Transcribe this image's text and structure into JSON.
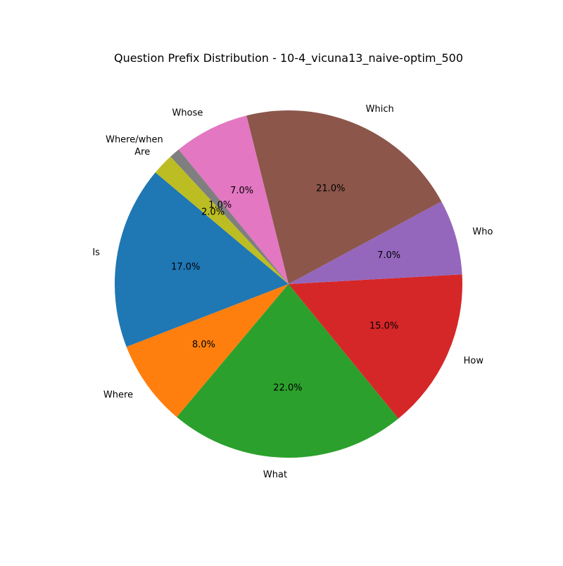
{
  "chart_data": {
    "type": "pie",
    "title": "Question Prefix Distribution - 10-4_vicuna13_naive-optim_500",
    "categories": [
      "Is",
      "Where",
      "What",
      "How",
      "Who",
      "Which",
      "Whose",
      "Where/when",
      "Are"
    ],
    "values": [
      17.0,
      8.0,
      22.0,
      15.0,
      7.0,
      21.0,
      7.0,
      1.0,
      2.0
    ],
    "percent_labels": [
      "17.0%",
      "8.0%",
      "22.0%",
      "15.0%",
      "7.0%",
      "21.0%",
      "7.0%",
      "1.0%",
      "2.0%"
    ],
    "colors": [
      "#1f77b4",
      "#ff7f0e",
      "#2ca02c",
      "#d62728",
      "#9467bd",
      "#8c564b",
      "#e377c2",
      "#7f7f7f",
      "#bcbd22"
    ],
    "start_angle_deg": 140,
    "direction": "counterclockwise",
    "legend": "none"
  }
}
